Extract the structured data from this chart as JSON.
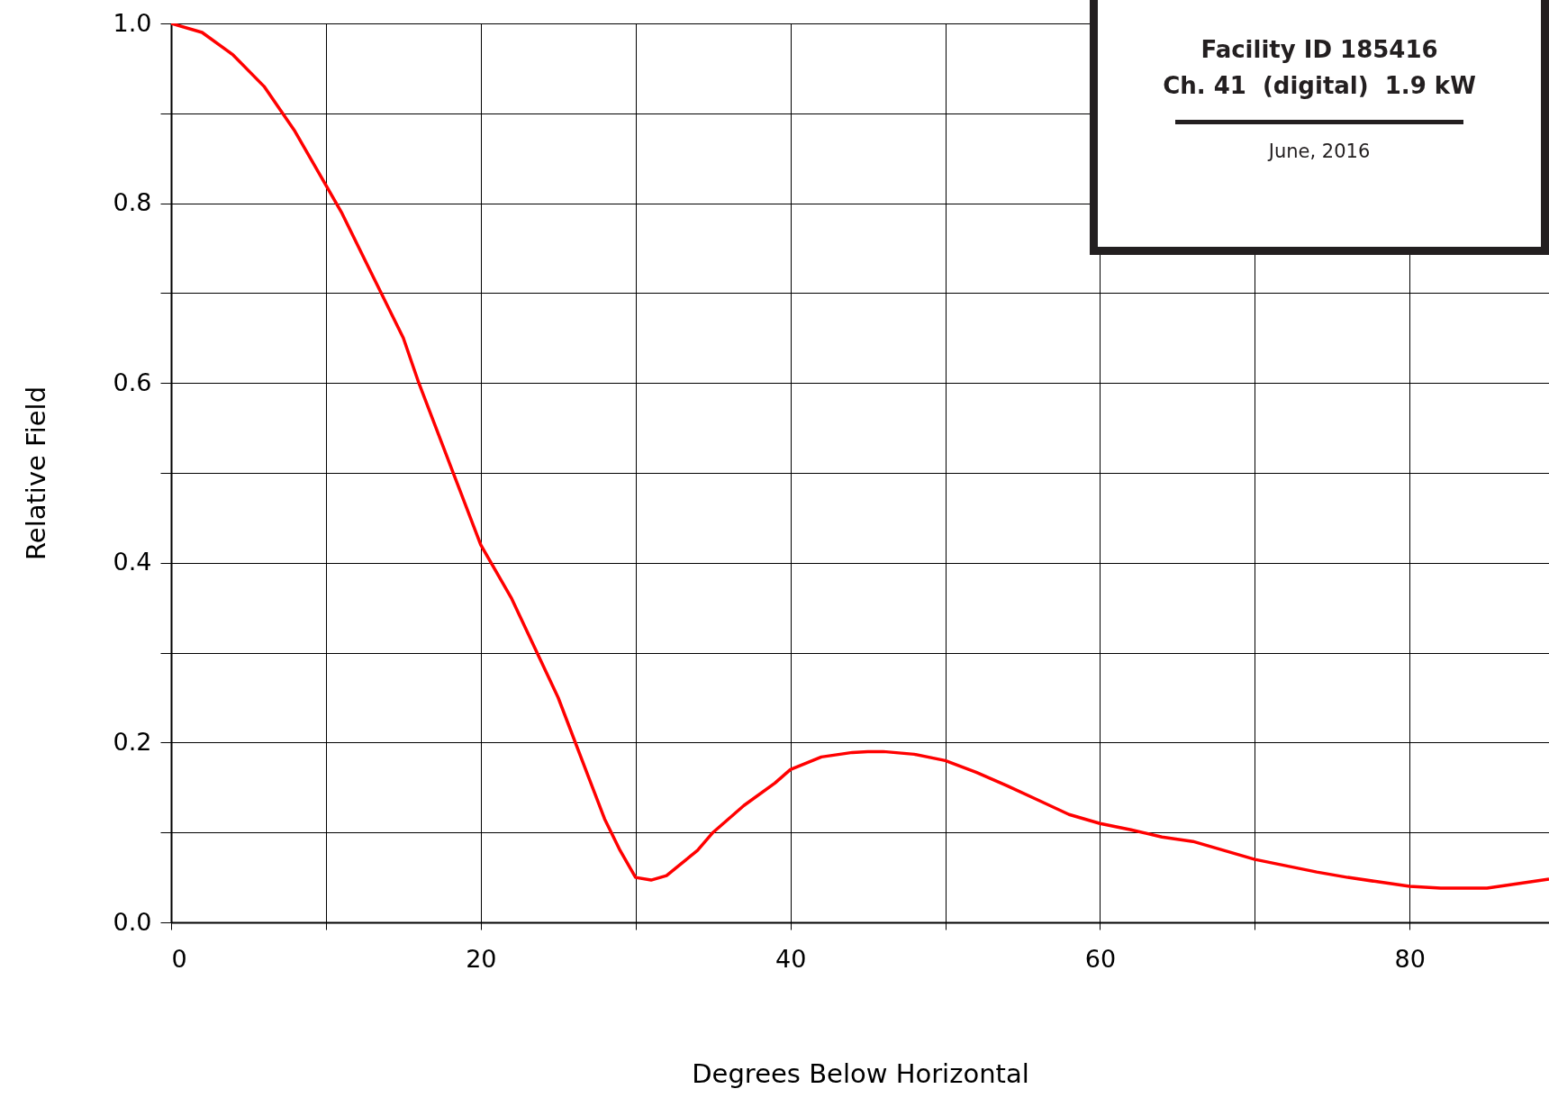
{
  "chart_data": {
    "type": "line",
    "xlabel": "Degrees Below Horizontal",
    "ylabel": "Relative Field",
    "annotations": [
      "Facility ID 185416",
      "Ch. 41  (digital)  1.9 kW",
      "June, 2016"
    ],
    "x": [
      0,
      2,
      4,
      6,
      8,
      10,
      11,
      13,
      15,
      16,
      18,
      20,
      22,
      25,
      27,
      28,
      29,
      30,
      31,
      32,
      33,
      34,
      35,
      37,
      39,
      40,
      42,
      44,
      45,
      46,
      48,
      50,
      52,
      54,
      56,
      58,
      60,
      62,
      64,
      66,
      68,
      70,
      72,
      74,
      76,
      78,
      80,
      82,
      85,
      87,
      89
    ],
    "series": [
      {
        "color": "#ff0000",
        "values": [
          1.0,
          0.99,
          0.965,
          0.93,
          0.88,
          0.82,
          0.79,
          0.72,
          0.65,
          0.6,
          0.51,
          0.42,
          0.36,
          0.25,
          0.16,
          0.115,
          0.08,
          0.05,
          0.047,
          0.052,
          0.066,
          0.08,
          0.1,
          0.13,
          0.155,
          0.17,
          0.184,
          0.189,
          0.19,
          0.19,
          0.187,
          0.18,
          0.167,
          0.152,
          0.136,
          0.12,
          0.11,
          0.103,
          0.095,
          0.09,
          0.08,
          0.07,
          0.063,
          0.056,
          0.05,
          0.045,
          0.04,
          0.038,
          0.038,
          0.043,
          0.048
        ]
      }
    ],
    "xlim": [
      0,
      89
    ],
    "ylim": [
      0,
      1
    ],
    "xticks": [
      0,
      {
        "value": 10,
        "label": null
      },
      20,
      {
        "value": 30,
        "label": null
      },
      40,
      {
        "value": 50,
        "label": null
      },
      60,
      {
        "value": 70,
        "label": null
      },
      80
    ],
    "yticks": [
      {
        "value": 0,
        "label": "0.0"
      },
      {
        "value": 0.1,
        "label": null
      },
      {
        "value": 0.2,
        "label": "0.2"
      },
      {
        "value": 0.3,
        "label": null
      },
      {
        "value": 0.4,
        "label": "0.4"
      },
      {
        "value": 0.5,
        "label": null
      },
      {
        "value": 0.6,
        "label": "0.6"
      },
      {
        "value": 0.7,
        "label": null
      },
      {
        "value": 0.8,
        "label": "0.8"
      },
      {
        "value": 0.9,
        "label": null
      },
      {
        "value": 1.0,
        "label": "1.0"
      }
    ],
    "grid": true,
    "marker": "none",
    "line_style": "solid"
  }
}
